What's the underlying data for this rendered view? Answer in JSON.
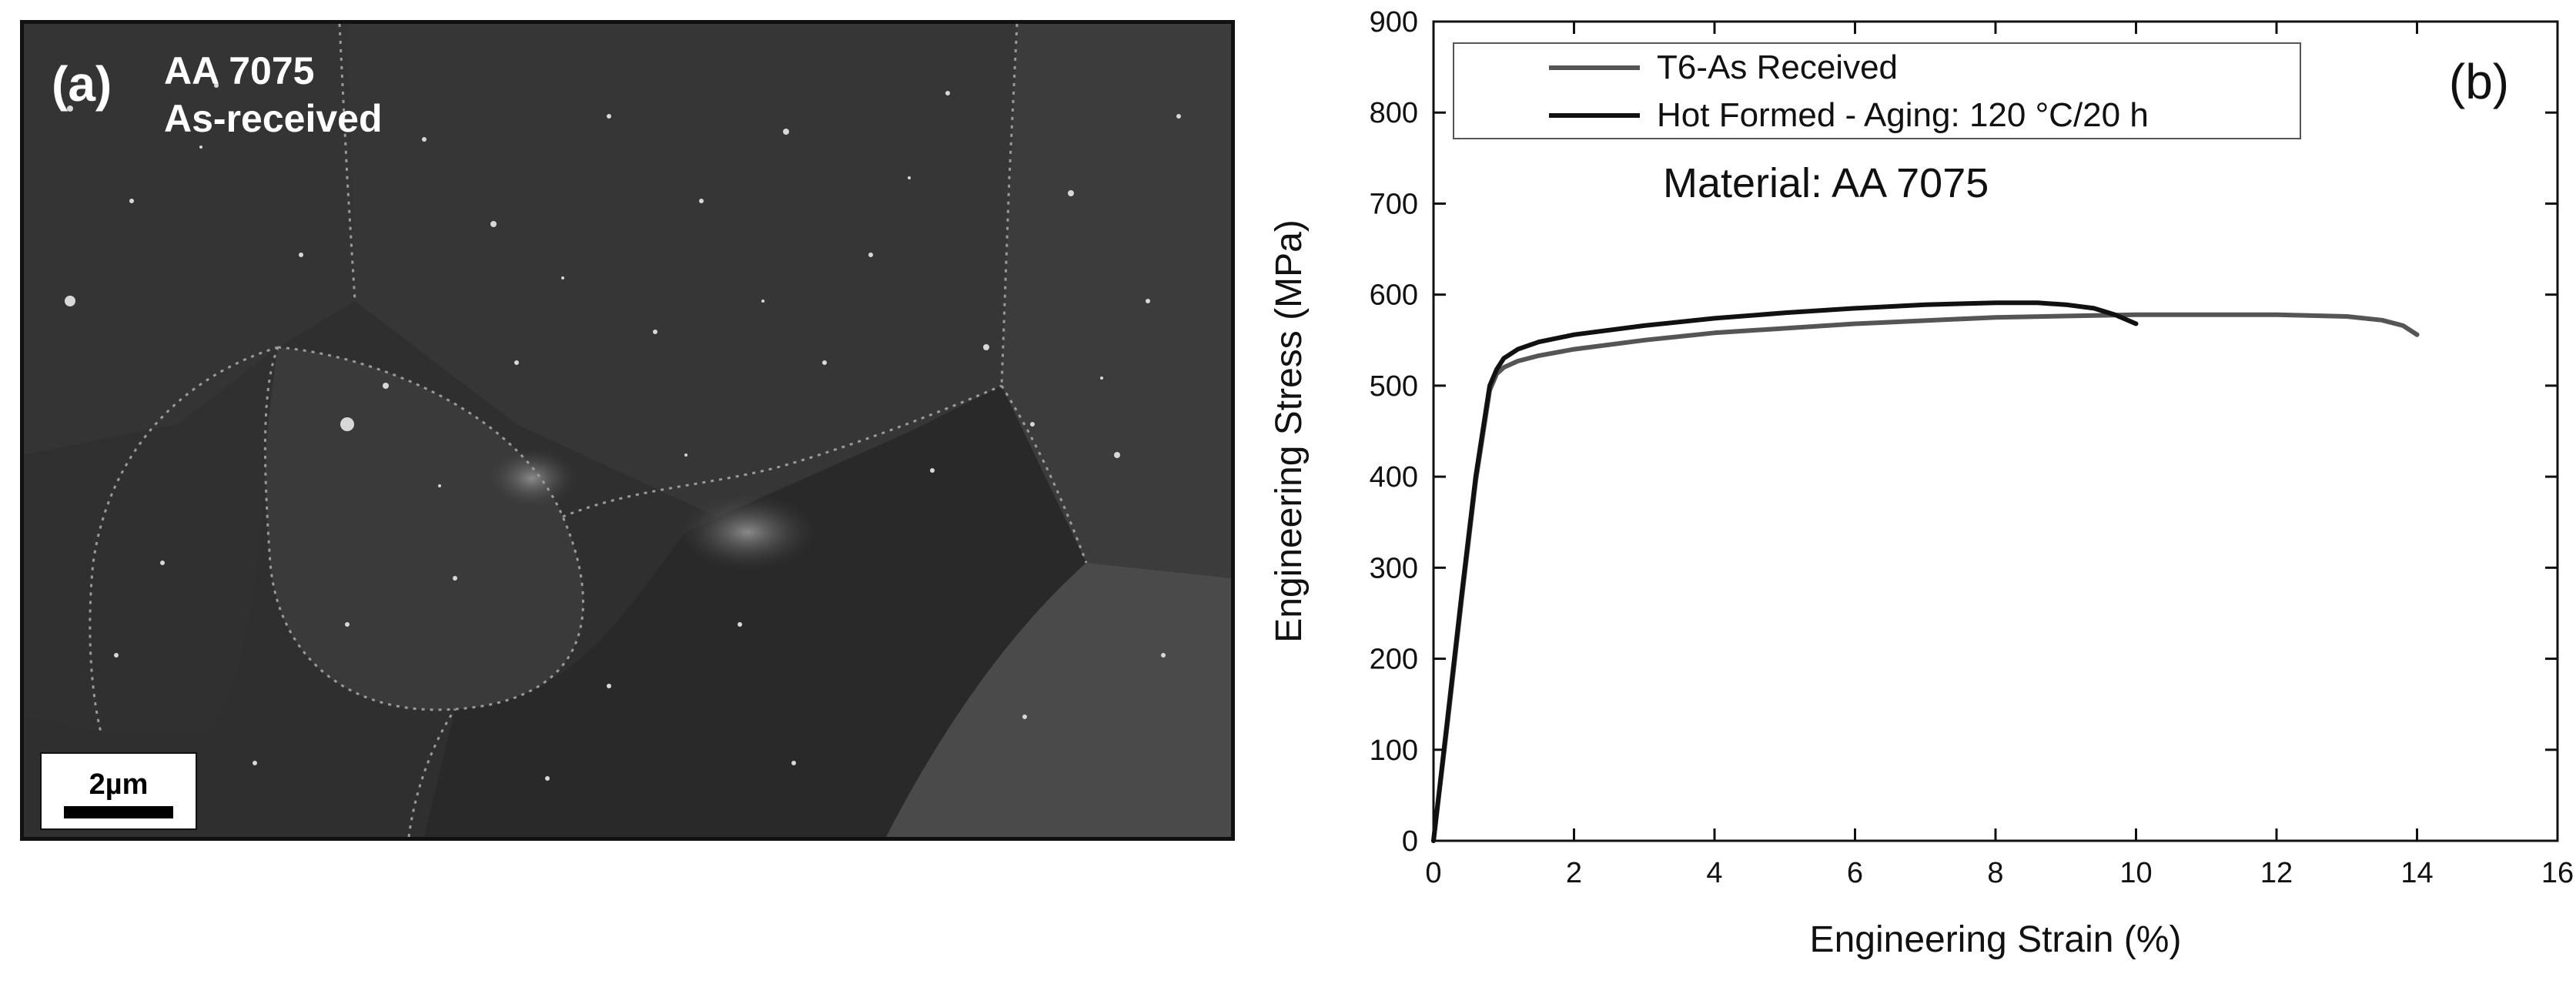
{
  "micrograph": {
    "panel_label": "(a)",
    "material_line": "AA 7075",
    "condition_line": "As-received",
    "scale_bar_label": "2µm"
  },
  "chart_data": {
    "type": "line",
    "panel_label": "(b)",
    "annotation": "Material: AA 7075",
    "xlabel": "Engineering Strain (%)",
    "ylabel": "Engineering Stress (MPa)",
    "xlim": [
      0,
      16
    ],
    "ylim": [
      0,
      900
    ],
    "xticks": [
      0,
      2,
      4,
      6,
      8,
      10,
      12,
      14,
      16
    ],
    "yticks": [
      0,
      100,
      200,
      300,
      400,
      500,
      600,
      700,
      800,
      900
    ],
    "grid": false,
    "legend_position": "top-left",
    "series": [
      {
        "name": "T6-As Received",
        "color": "#555555",
        "x": [
          0,
          0.2,
          0.4,
          0.6,
          0.8,
          0.9,
          1.0,
          1.2,
          1.5,
          2,
          3,
          4,
          6,
          8,
          10,
          12,
          13,
          13.5,
          13.8,
          14.0
        ],
        "y": [
          0,
          130,
          265,
          395,
          495,
          513,
          520,
          527,
          533,
          540,
          550,
          558,
          568,
          575,
          578,
          578,
          576,
          572,
          566,
          556
        ]
      },
      {
        "name": "Hot Formed - Aging: 120 °C/20 h",
        "color": "#111111",
        "x": [
          0,
          0.2,
          0.4,
          0.6,
          0.8,
          0.9,
          1.0,
          1.2,
          1.5,
          2,
          3,
          4,
          5,
          6,
          7,
          8,
          8.6,
          9.0,
          9.4,
          9.7,
          10.0
        ],
        "y": [
          0,
          135,
          270,
          400,
          500,
          518,
          530,
          540,
          548,
          556,
          566,
          574,
          580,
          585,
          589,
          591,
          591,
          589,
          585,
          578,
          568
        ]
      }
    ]
  }
}
